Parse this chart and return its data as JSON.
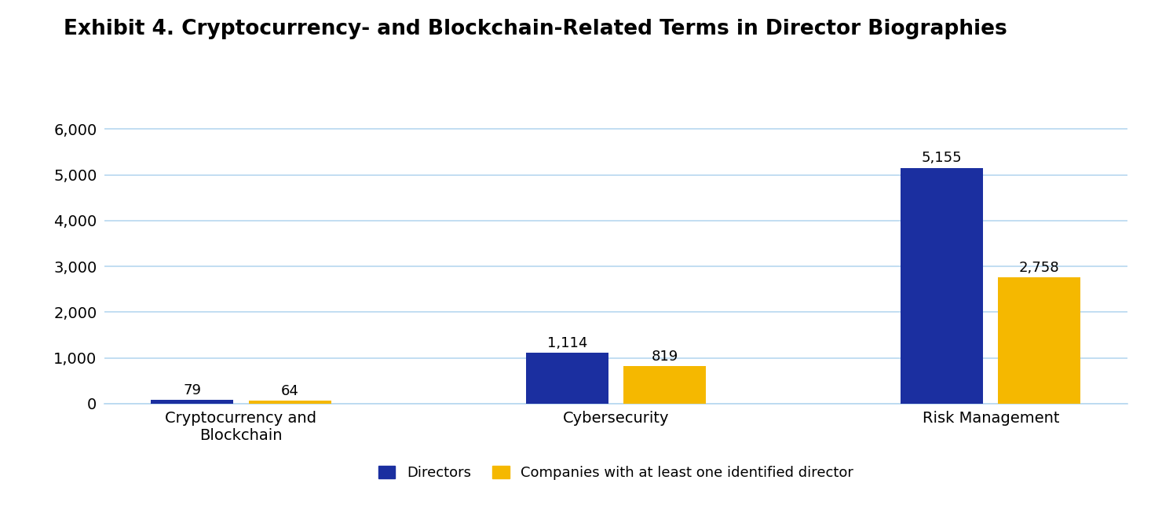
{
  "title": "Exhibit 4. Cryptocurrency- and Blockchain-Related Terms in Director Biographies",
  "categories": [
    "Cryptocurrency and\nBlockchain",
    "Cybersecurity",
    "Risk Management"
  ],
  "directors": [
    79,
    1114,
    5155
  ],
  "companies": [
    64,
    819,
    2758
  ],
  "director_color": "#1B2FA0",
  "company_color": "#F5B800",
  "background_color": "#FFFFFF",
  "plot_bg_color": "#FFFFFF",
  "grid_color": "#B8D8F0",
  "ylim": [
    0,
    6500
  ],
  "yticks": [
    0,
    1000,
    2000,
    3000,
    4000,
    5000,
    6000
  ],
  "ytick_labels": [
    "0",
    "1,000",
    "2,000",
    "3,000",
    "4,000",
    "5,000",
    "6,000"
  ],
  "legend_directors": "Directors",
  "legend_companies": "Companies with at least one identified director",
  "bar_width": 0.22,
  "bar_gap": 0.04,
  "title_fontsize": 19,
  "tick_fontsize": 14,
  "legend_fontsize": 13,
  "value_fontsize": 13
}
